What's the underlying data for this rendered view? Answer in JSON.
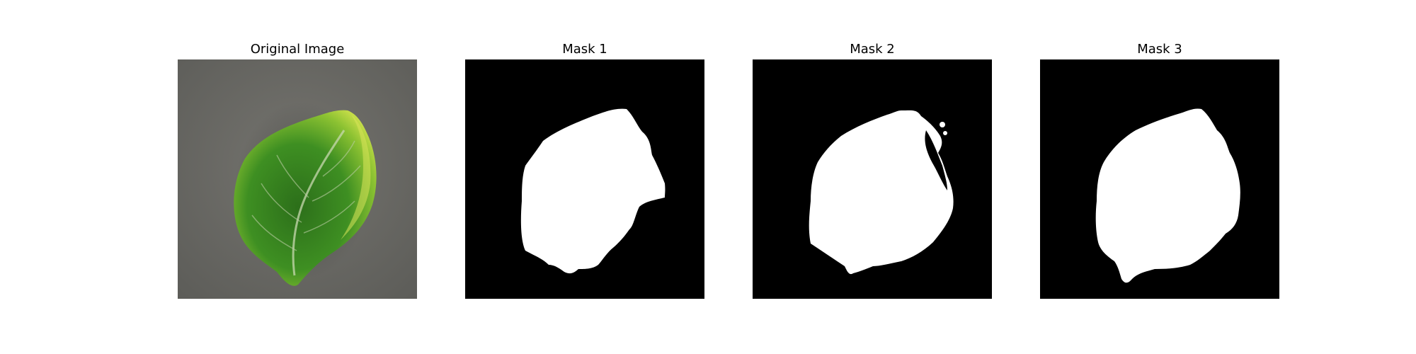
{
  "figure": {
    "panels": [
      {
        "title": "Original Image"
      },
      {
        "title": "Mask 1"
      },
      {
        "title": "Mask 2"
      },
      {
        "title": "Mask 3"
      }
    ]
  },
  "colors": {
    "background": "#ffffff",
    "mask_background": "#000000",
    "mask_foreground": "#ffffff",
    "photo_background": "#6a6a66",
    "leaf_dark": "#2f7d1f",
    "leaf_light": "#b8d83a"
  }
}
